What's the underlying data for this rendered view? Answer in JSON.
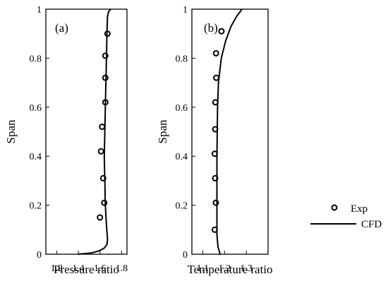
{
  "legend": [
    {
      "label": "Exp",
      "marker": "open-circle"
    },
    {
      "label": "CFD",
      "marker": "line"
    }
  ],
  "chart_data": [
    {
      "type": "line",
      "panel_label": "(a)",
      "xlabel": "Pressure ratio",
      "ylabel": "Span",
      "xlim": [
        1.1,
        1.85
      ],
      "ylim": [
        0,
        1
      ],
      "xticks": [
        1.2,
        1.4,
        1.6,
        1.8
      ],
      "xtick_labels": [
        "1.2",
        "1.4",
        "1.6",
        "1.8"
      ],
      "yticks": [
        0,
        0.2,
        0.4,
        0.6,
        0.8,
        1
      ],
      "ytick_labels": [
        "0",
        "0.2",
        "0.4",
        "0.6",
        "0.8",
        "1"
      ],
      "series": [
        {
          "name": "Exp",
          "style": "open-circle",
          "points": [
            {
              "x": 1.6,
              "y": 0.15
            },
            {
              "x": 1.64,
              "y": 0.21
            },
            {
              "x": 1.63,
              "y": 0.31
            },
            {
              "x": 1.61,
              "y": 0.42
            },
            {
              "x": 1.62,
              "y": 0.52
            },
            {
              "x": 1.65,
              "y": 0.62
            },
            {
              "x": 1.65,
              "y": 0.72
            },
            {
              "x": 1.65,
              "y": 0.81
            },
            {
              "x": 1.67,
              "y": 0.9
            }
          ]
        },
        {
          "name": "CFD",
          "style": "line",
          "points": [
            {
              "x": 1.4,
              "y": 0.0
            },
            {
              "x": 1.52,
              "y": 0.005
            },
            {
              "x": 1.6,
              "y": 0.015
            },
            {
              "x": 1.64,
              "y": 0.025
            },
            {
              "x": 1.665,
              "y": 0.04
            },
            {
              "x": 1.67,
              "y": 0.06
            },
            {
              "x": 1.66,
              "y": 0.12
            },
            {
              "x": 1.65,
              "y": 0.2
            },
            {
              "x": 1.645,
              "y": 0.3
            },
            {
              "x": 1.64,
              "y": 0.4
            },
            {
              "x": 1.645,
              "y": 0.5
            },
            {
              "x": 1.65,
              "y": 0.6
            },
            {
              "x": 1.655,
              "y": 0.7
            },
            {
              "x": 1.66,
              "y": 0.8
            },
            {
              "x": 1.665,
              "y": 0.9
            },
            {
              "x": 1.67,
              "y": 0.97
            },
            {
              "x": 1.68,
              "y": 0.99
            },
            {
              "x": 1.7,
              "y": 1.0
            }
          ]
        }
      ]
    },
    {
      "type": "line",
      "panel_label": "(b)",
      "xlabel": "Temperature ratio",
      "ylabel": "Span",
      "xlim": [
        1.05,
        1.4
      ],
      "ylim": [
        0,
        1
      ],
      "xticks": [
        1.1,
        1.2,
        1.3
      ],
      "xtick_labels": [
        "1.1",
        "1.2",
        "1.3"
      ],
      "yticks": [
        0,
        0.2,
        0.4,
        0.6,
        0.8,
        1
      ],
      "ytick_labels": [
        "0",
        "0.2",
        "0.4",
        "0.6",
        "0.8",
        "1"
      ],
      "series": [
        {
          "name": "Exp",
          "style": "open-circle",
          "points": [
            {
              "x": 1.155,
              "y": 0.1
            },
            {
              "x": 1.16,
              "y": 0.21
            },
            {
              "x": 1.157,
              "y": 0.31
            },
            {
              "x": 1.155,
              "y": 0.41
            },
            {
              "x": 1.157,
              "y": 0.51
            },
            {
              "x": 1.158,
              "y": 0.62
            },
            {
              "x": 1.162,
              "y": 0.72
            },
            {
              "x": 1.161,
              "y": 0.82
            },
            {
              "x": 1.186,
              "y": 0.91
            }
          ]
        },
        {
          "name": "CFD",
          "style": "line",
          "points": [
            {
              "x": 1.18,
              "y": 0.0
            },
            {
              "x": 1.17,
              "y": 0.03
            },
            {
              "x": 1.165,
              "y": 0.08
            },
            {
              "x": 1.165,
              "y": 0.2
            },
            {
              "x": 1.165,
              "y": 0.4
            },
            {
              "x": 1.168,
              "y": 0.6
            },
            {
              "x": 1.172,
              "y": 0.7
            },
            {
              "x": 1.185,
              "y": 0.8
            },
            {
              "x": 1.205,
              "y": 0.87
            },
            {
              "x": 1.23,
              "y": 0.93
            },
            {
              "x": 1.255,
              "y": 0.97
            },
            {
              "x": 1.28,
              "y": 1.0
            }
          ]
        }
      ]
    }
  ]
}
